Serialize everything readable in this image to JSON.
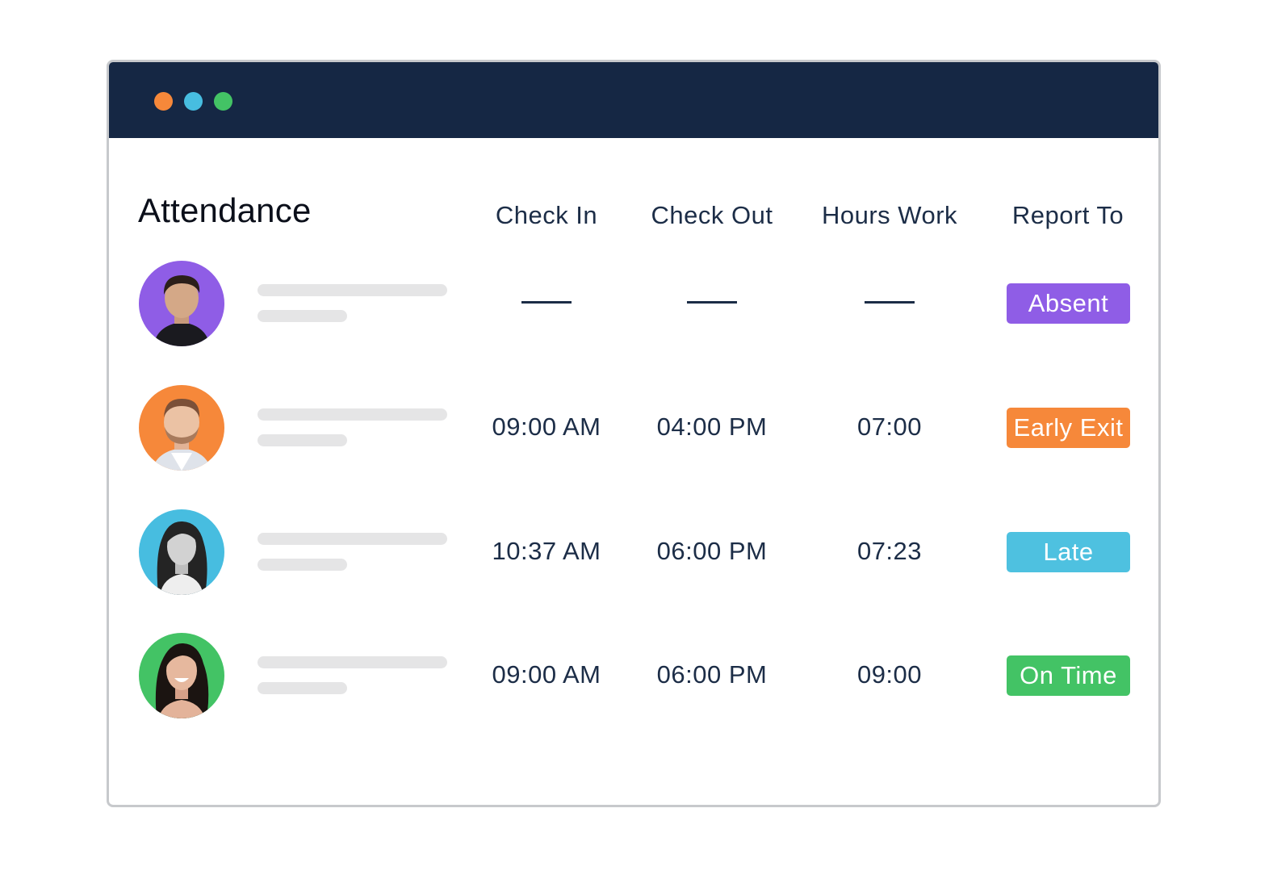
{
  "window": {
    "controls": [
      {
        "name": "window-dot-orange",
        "color": "#f6883a"
      },
      {
        "name": "window-dot-blue",
        "color": "#47bde0"
      },
      {
        "name": "window-dot-green",
        "color": "#43c365"
      }
    ]
  },
  "page": {
    "title": "Attendance"
  },
  "columns": {
    "check_in": "Check In",
    "check_out": "Check Out",
    "hours_work": "Hours Work",
    "report_to": "Report To"
  },
  "rows": [
    {
      "avatar_color": "#8f5de6",
      "avatar_icon": "person-portrait-man-dark-hair",
      "check_in": "",
      "check_out": "",
      "hours": "",
      "status": "Absent",
      "status_color": "#8f5de6"
    },
    {
      "avatar_color": "#f6883a",
      "avatar_icon": "person-portrait-man-beard",
      "check_in": "09:00 AM",
      "check_out": "04:00 PM",
      "hours": "07:00",
      "status": "Early Exit",
      "status_color": "#f6883a"
    },
    {
      "avatar_color": "#47bde0",
      "avatar_icon": "person-portrait-woman-long-hair",
      "check_in": "10:37 AM",
      "check_out": "06:00 PM",
      "hours": "07:23",
      "status": "Late",
      "status_color": "#4ec1e0"
    },
    {
      "avatar_color": "#43c365",
      "avatar_icon": "person-portrait-woman-smiling",
      "check_in": "09:00 AM",
      "check_out": "06:00 PM",
      "hours": "09:00",
      "status": "On Time",
      "status_color": "#43c365"
    }
  ]
}
